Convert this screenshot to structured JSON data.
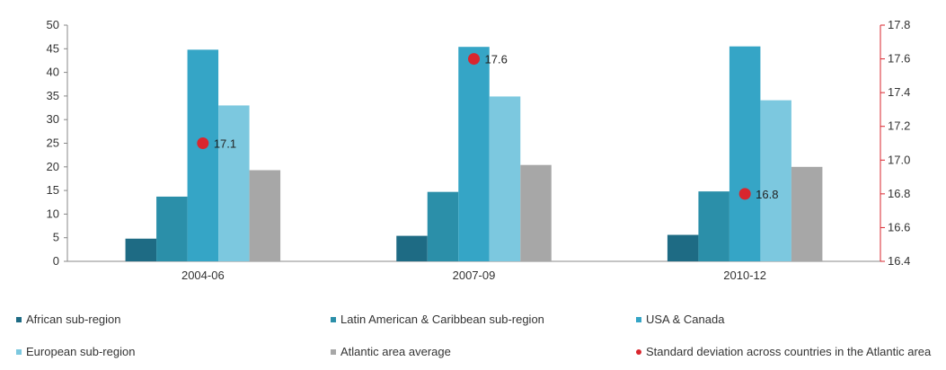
{
  "chart_data": {
    "type": "bar",
    "categories": [
      "2004-06",
      "2007-09",
      "2010-12"
    ],
    "series": [
      {
        "name": "African sub-region",
        "values": [
          4.8,
          5.4,
          5.6
        ],
        "color": "#1e6b84"
      },
      {
        "name": "Latin American & Caribbean sub-region",
        "values": [
          13.7,
          14.7,
          14.8
        ],
        "color": "#2b8fa9"
      },
      {
        "name": "USA & Canada",
        "values": [
          44.8,
          45.4,
          45.5
        ],
        "color": "#35a5c6"
      },
      {
        "name": "European sub-region",
        "values": [
          33.0,
          34.9,
          34.1
        ],
        "color": "#7cc8df"
      },
      {
        "name": "Atlantic area average",
        "values": [
          19.3,
          20.4,
          20.0
        ],
        "color": "#a7a7a7"
      }
    ],
    "secondary_series": {
      "name": "Standard deviation across countries in the Atlantic area",
      "type": "scatter",
      "values": [
        17.1,
        17.6,
        16.8
      ],
      "labels": [
        "17.1",
        "17.6",
        "16.8"
      ],
      "color": "#d9262e",
      "x_positions_series": [
        "USA & Canada",
        "USA & Canada",
        "USA & Canada"
      ]
    },
    "ylim": [
      0,
      50
    ],
    "yticks": [
      "0",
      "5",
      "10",
      "15",
      "20",
      "25",
      "30",
      "35",
      "40",
      "45",
      "50"
    ],
    "y2lim": [
      16.4,
      17.8
    ],
    "y2ticks": [
      "16.4",
      "16.6",
      "16.8",
      "17.0",
      "17.2",
      "17.4",
      "17.6",
      "17.8"
    ],
    "right_axis_color": "#d9262e",
    "legend_position": "bottom",
    "grid": false
  }
}
